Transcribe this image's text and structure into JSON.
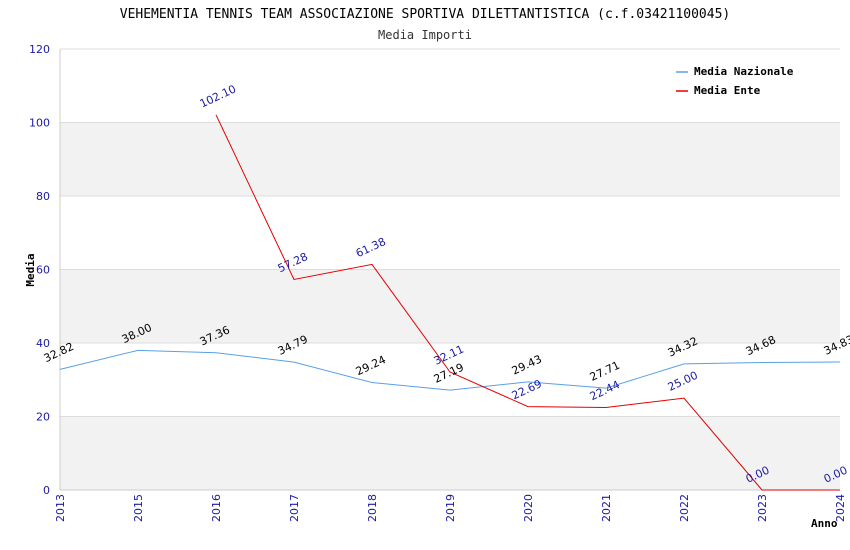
{
  "chart_data": {
    "type": "line",
    "title": "VEHEMENTIA TENNIS TEAM ASSOCIAZIONE SPORTIVA DILETTANTISTICA (c.f.03421100045)",
    "subtitle": "Media Importi",
    "xlabel": "Anno",
    "ylabel": "Media",
    "ylim": [
      0,
      120
    ],
    "yticks": [
      "0",
      "20",
      "40",
      "60",
      "80",
      "100",
      "120"
    ],
    "categories": [
      "2013",
      "2015",
      "2016",
      "2017",
      "2018",
      "2019",
      "2020",
      "2021",
      "2022",
      "2023",
      "2024"
    ],
    "grid": "horizontal bands",
    "legend_position": "top-right",
    "series": [
      {
        "name": "Media Nazionale",
        "color": "#5aa0e6",
        "values": [
          32.82,
          38.0,
          37.36,
          34.79,
          29.24,
          27.19,
          29.43,
          27.71,
          34.32,
          34.68,
          34.83
        ],
        "labels": [
          "32.82",
          "38.00",
          "37.36",
          "34.79",
          "29.24",
          "27.19",
          "29.43",
          "27.71",
          "34.32",
          "34.68",
          "34.83"
        ]
      },
      {
        "name": "Media Ente",
        "color": "#e60000",
        "values": [
          null,
          null,
          102.1,
          57.28,
          61.38,
          32.11,
          22.69,
          22.44,
          25.0,
          0.0,
          0.0
        ],
        "labels": [
          null,
          null,
          "102.10",
          "57.28",
          "61.38",
          "32.11",
          "22.69",
          "22.44",
          "25.00",
          "0.00",
          "0.00"
        ]
      }
    ]
  }
}
